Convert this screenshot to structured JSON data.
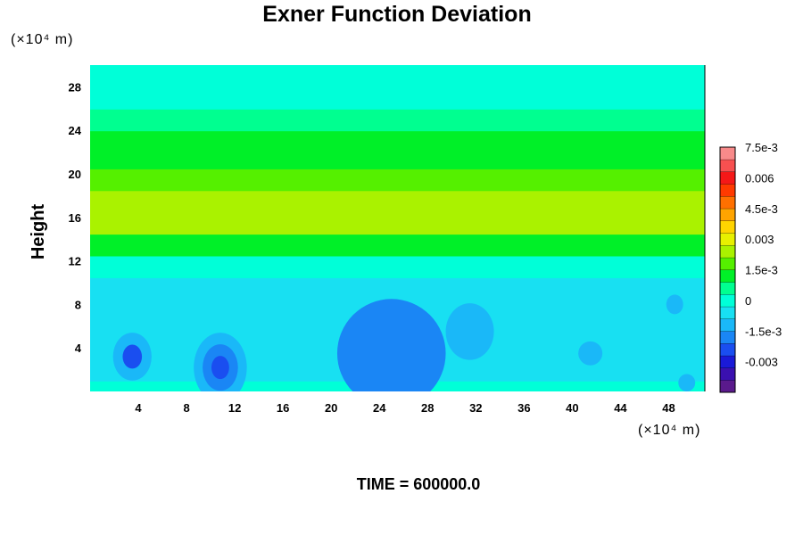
{
  "chart_data": {
    "type": "heatmap",
    "title": "Exner Function Deviation",
    "xlabel": "",
    "ylabel": "Height",
    "x_unit": "(×10⁴ m)",
    "y_unit": "(×10⁴ m)",
    "xlim": [
      0,
      51
    ],
    "ylim": [
      0,
      30
    ],
    "x_ticks": [
      4,
      8,
      12,
      16,
      20,
      24,
      28,
      32,
      36,
      40,
      44,
      48
    ],
    "x_tick_labels": [
      "4",
      "8",
      "12",
      "16",
      "20",
      "24",
      "28",
      "32",
      "36",
      "40",
      "44",
      "48"
    ],
    "y_ticks": [
      4,
      8,
      12,
      16,
      20,
      24,
      28
    ],
    "y_tick_labels": [
      "4",
      "8",
      "12",
      "16",
      "20",
      "24",
      "28"
    ],
    "colorbar": {
      "range": [
        -0.0045,
        0.0075
      ],
      "ticks": [
        0.0075,
        0.006,
        0.0045,
        0.003,
        0.0015,
        0,
        -0.0015,
        -0.003
      ],
      "tick_labels": [
        "7.5e-3",
        "0.006",
        "4.5e-3",
        "0.003",
        "1.5e-3",
        "0",
        "-1.5e-3",
        "-0.003"
      ],
      "colors": [
        "#5a1a8c",
        "#3a10b0",
        "#1a1ad8",
        "#1a4ef0",
        "#1a86f5",
        "#1ab8f8",
        "#18e0f2",
        "#00ffd8",
        "#00ff90",
        "#00f028",
        "#55f000",
        "#aaf200",
        "#e8f000",
        "#ffd400",
        "#ffa400",
        "#ff7000",
        "#ff3a00",
        "#f51818",
        "#f85050",
        "#f88a8a"
      ]
    },
    "bands": [
      {
        "y": [
          0,
          1
        ],
        "value": 0.0002
      },
      {
        "y": [
          1,
          10.5
        ],
        "value": -0.0008
      },
      {
        "y": [
          10.5,
          12.5
        ],
        "value": 0.0002
      },
      {
        "y": [
          12.5,
          14.5
        ],
        "value": 0.0013
      },
      {
        "y": [
          14.5,
          18.5
        ],
        "value": 0.0024
      },
      {
        "y": [
          18.5,
          20.5
        ],
        "value": 0.0019
      },
      {
        "y": [
          20.5,
          21.5
        ],
        "value": 0.0011
      },
      {
        "y": [
          21.5,
          24
        ],
        "value": 0.0009
      },
      {
        "y": [
          24,
          26
        ],
        "value": 0.0004
      },
      {
        "y": [
          26,
          30
        ],
        "value": 0.0001
      }
    ],
    "features": [
      {
        "x": 3.5,
        "y": 3.2,
        "rx": 1.6,
        "ry": 2.2,
        "value": -0.0021
      },
      {
        "x": 10.8,
        "y": 2.2,
        "rx": 2.2,
        "ry": 3.2,
        "value": -0.0026
      },
      {
        "x": 25,
        "y": 3.5,
        "rx": 4.5,
        "ry": 5,
        "value": -0.0016
      },
      {
        "x": 31.5,
        "y": 5.5,
        "rx": 2,
        "ry": 2.6,
        "value": -0.0014
      },
      {
        "x": 41.5,
        "y": 3.5,
        "rx": 1,
        "ry": 1.1,
        "value": -0.0011
      },
      {
        "x": 48.5,
        "y": 8,
        "rx": 0.7,
        "ry": 0.9,
        "value": -0.0012
      },
      {
        "x": 49.5,
        "y": 0.8,
        "rx": 0.7,
        "ry": 0.8,
        "value": -0.0011
      }
    ],
    "time_label": "TIME = 600000.0"
  }
}
